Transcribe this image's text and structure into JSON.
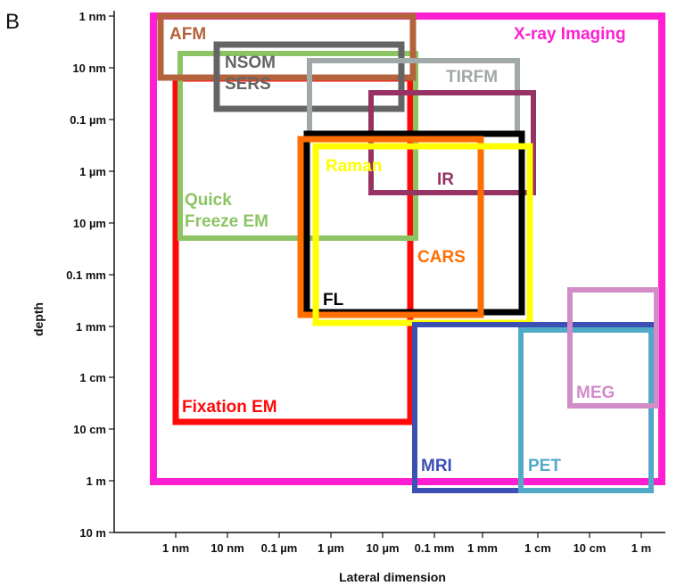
{
  "panel_label": "B",
  "chart_data": {
    "type": "range-boxes",
    "title": "",
    "xlabel": "Lateral dimension",
    "ylabel": "depth",
    "x_ticks": [
      "1 nm",
      "10 nm",
      "0.1 µm",
      "1 µm",
      "10 µm",
      "0.1 mm",
      "1 mm",
      "1 cm",
      "10 cm",
      "1 m"
    ],
    "y_ticks": [
      "1 nm",
      "10 nm",
      "0.1 µm",
      "1 µm",
      "10 µm",
      "0.1 mm",
      "1 mm",
      "1 cm",
      "10 cm",
      "1 m",
      "10 m"
    ],
    "x_scale": "log10 meters",
    "y_scale": "log10 meters (depth increases downward)",
    "boxes": [
      {
        "name": "X-ray Imaging",
        "color": "#ff1ed2",
        "x_range": [
          "1 nm",
          "1 m"
        ],
        "y_range": [
          "1 nm",
          "1 m"
        ],
        "x_log": [
          -9.5,
          0.4
        ],
        "y_log": [
          -9,
          0
        ]
      },
      {
        "name": "Fixation EM",
        "color": "#ff0a0a",
        "x_range": [
          "1 nm",
          "0.1 mm"
        ],
        "y_range": [
          "10 nm",
          "10 cm"
        ],
        "x_log": [
          -9,
          -4.05
        ],
        "y_log": [
          -8.3,
          -1.1
        ]
      },
      {
        "name": "Quick Freeze EM",
        "color": "#8cc464",
        "x_range": [
          "1 nm",
          "0.1 mm"
        ],
        "y_range": [
          "10 nm",
          "10 µm"
        ],
        "x_log": [
          -8.95,
          -3.95
        ],
        "y_log": [
          -8,
          -5.3
        ]
      },
      {
        "name": "AFM",
        "color": "#b4643c",
        "x_range": [
          "1 nm",
          "0.1 mm"
        ],
        "y_range": [
          "1 nm",
          "10 nm"
        ],
        "x_log": [
          -9.1,
          -4.0
        ],
        "y_log": [
          -9,
          -8.2
        ]
      },
      {
        "name": "NSOM SERS",
        "color": "#646464",
        "x_range": [
          "10 nm",
          "10 µm"
        ],
        "y_range": [
          "10 nm",
          "0.1 µm"
        ],
        "x_log": [
          -8.1,
          -4.35
        ],
        "y_log": [
          -8.5,
          -7.25
        ]
      },
      {
        "name": "TIRFM",
        "color": "#a0a8a8",
        "x_range": [
          "0.1 µm",
          "1 cm"
        ],
        "y_range": [
          "10 nm",
          "0.1 µm"
        ],
        "x_log": [
          -6.5,
          -2.1
        ],
        "y_log": [
          -8.2,
          -6.75
        ]
      },
      {
        "name": "IR",
        "color": "#963264",
        "x_range": [
          "10 µm",
          "1 cm"
        ],
        "y_range": [
          "0.1 µm",
          "10 µm"
        ],
        "x_log": [
          -4.8,
          -1.9
        ],
        "y_log": [
          -7.5,
          -5.55
        ]
      },
      {
        "name": "FL",
        "color": "#000000",
        "x_range": [
          "0.1 µm",
          "1 cm"
        ],
        "y_range": [
          "0.1 µm",
          "1 mm"
        ],
        "x_log": [
          -6.4,
          -2.1
        ],
        "y_log": [
          -6.75,
          -2.8
        ]
      },
      {
        "name": "CARS",
        "color": "#ff6e00",
        "x_range": [
          "0.1 µm",
          "1 mm"
        ],
        "y_range": [
          "1 µm",
          "1 mm"
        ],
        "x_log": [
          -6.55,
          -3.0
        ],
        "y_log": [
          -6.55,
          -2.8
        ]
      },
      {
        "name": "Raman",
        "color": "#ffff00",
        "x_range": [
          "1 µm",
          "1 cm"
        ],
        "y_range": [
          "1 µm",
          "1 mm"
        ],
        "x_log": [
          -6.25,
          -1.9
        ],
        "y_log": [
          -6.5,
          -2.55
        ]
      },
      {
        "name": "MRI",
        "color": "#3c50b4",
        "x_range": [
          "0.1 mm",
          "1 m"
        ],
        "y_range": [
          "1 mm",
          "1 m"
        ],
        "x_log": [
          -4.03,
          0.25
        ],
        "y_log": [
          -2.95,
          0.25
        ]
      },
      {
        "name": "PET",
        "color": "#50aac8",
        "x_range": [
          "1 cm",
          "1 m"
        ],
        "y_range": [
          "1 mm",
          "1 m"
        ],
        "x_log": [
          -2.05,
          0.25
        ],
        "y_log": [
          -2.85,
          0.25
        ]
      },
      {
        "name": "MEG",
        "color": "#d28cc8",
        "x_range": [
          "10 cm",
          "1 m"
        ],
        "y_range": [
          "1 mm",
          "10 cm"
        ],
        "x_log": [
          -0.9,
          0.3
        ],
        "y_log": [
          -3.7,
          -1.4
        ]
      }
    ]
  }
}
